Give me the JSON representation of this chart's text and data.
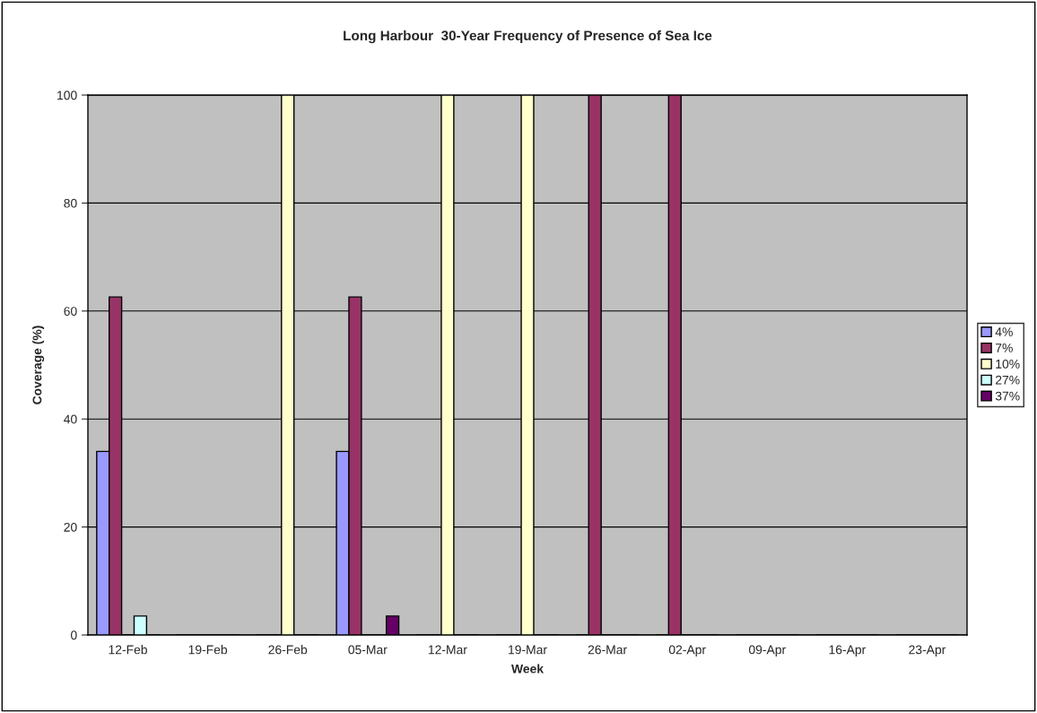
{
  "chart_data": {
    "type": "bar",
    "title": "Long Harbour  30-Year Frequency of Presence of Sea Ice",
    "xlabel": "Week",
    "ylabel": "Coverage (%)",
    "categories": [
      "12-Feb",
      "19-Feb",
      "26-Feb",
      "05-Mar",
      "12-Mar",
      "19-Mar",
      "26-Mar",
      "02-Apr",
      "09-Apr",
      "16-Apr",
      "23-Apr"
    ],
    "series": [
      {
        "name": "4%",
        "color": "#9999ff",
        "values": [
          34,
          0,
          0,
          34,
          0,
          0,
          0,
          0,
          0,
          0,
          0
        ]
      },
      {
        "name": "7%",
        "color": "#993366",
        "values": [
          62.6,
          0,
          0,
          62.6,
          0,
          0,
          100,
          100,
          0,
          0,
          0
        ]
      },
      {
        "name": "10%",
        "color": "#ffffcc",
        "values": [
          0,
          0,
          100,
          0,
          100,
          100,
          0,
          0,
          0,
          0,
          0
        ]
      },
      {
        "name": "27%",
        "color": "#ccffff",
        "values": [
          3.5,
          0,
          0,
          0,
          0,
          0,
          0,
          0,
          0,
          0,
          0
        ]
      },
      {
        "name": "37%",
        "color": "#660066",
        "values": [
          0,
          0,
          0,
          3.5,
          0,
          0,
          0,
          0,
          0,
          0,
          0
        ]
      }
    ],
    "ylim": [
      0,
      100
    ],
    "yticks": [
      0,
      20,
      40,
      60,
      80,
      100
    ],
    "grid": "y",
    "legend": "right"
  }
}
